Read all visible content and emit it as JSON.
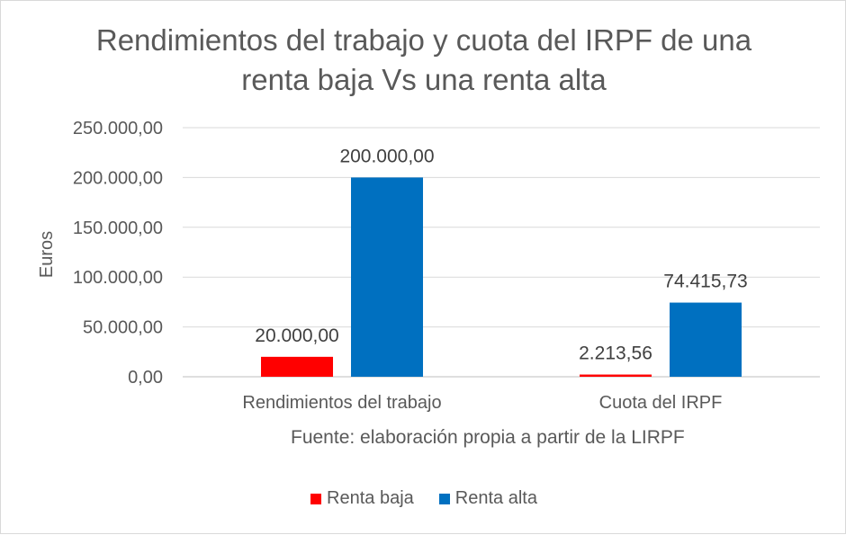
{
  "chart_data": {
    "type": "bar",
    "title": "Rendimientos del trabajo y cuota del IRPF de una renta baja Vs una renta alta",
    "title_lines": [
      "Rendimientos del trabajo y cuota del IRPF de una",
      "renta baja Vs una renta alta"
    ],
    "ylabel": "Euros",
    "xlabel": "",
    "source": "Fuente: elaboración propia a partir de la LIRPF",
    "categories": [
      "Rendimientos del trabajo",
      "Cuota del IRPF"
    ],
    "series": [
      {
        "name": "Renta baja",
        "color": "#ff0000",
        "values": [
          20000.0,
          2213.56
        ],
        "labels": [
          "20.000,00",
          "2.213,56"
        ]
      },
      {
        "name": "Renta alta",
        "color": "#0070c0",
        "values": [
          200000.0,
          74415.73
        ],
        "labels": [
          "200.000,00",
          "74.415,73"
        ]
      }
    ],
    "ylim": [
      0,
      250000
    ],
    "yticks": [
      0,
      50000,
      100000,
      150000,
      200000,
      250000
    ],
    "ytick_labels": [
      "0,00",
      "50.000,00",
      "100.000,00",
      "150.000,00",
      "200.000,00",
      "250.000,00"
    ],
    "grid": true,
    "legend_position": "bottom"
  }
}
